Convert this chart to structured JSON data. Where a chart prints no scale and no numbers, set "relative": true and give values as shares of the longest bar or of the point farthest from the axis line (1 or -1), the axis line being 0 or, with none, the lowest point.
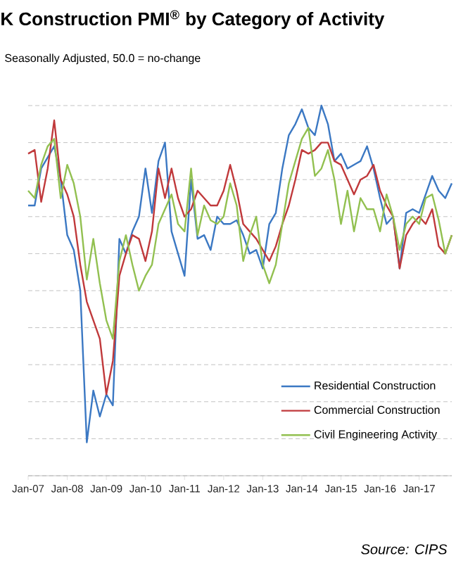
{
  "chart_data": {
    "type": "line",
    "relative": true,
    "title": "K Construction PMI$^{®}$ by Category of Activity",
    "subtitle": "Seasonally Adjusted, 50.0 = no-change",
    "annotations": [
      "Source: CIPS"
    ],
    "categories": [
      "Jan-07",
      null,
      null,
      null,
      null,
      null,
      "Jan-08",
      null,
      null,
      null,
      null,
      null,
      "Jan-09",
      null,
      null,
      null,
      null,
      null,
      "Jan-10",
      null,
      null,
      null,
      null,
      null,
      "Jan-11",
      null,
      null,
      null,
      null,
      null,
      "Jan-12",
      null,
      null,
      null,
      null,
      null,
      "Jan-13",
      null,
      null,
      null,
      null,
      null,
      "Jan-14",
      null,
      null,
      null,
      null,
      null,
      "Jan-15",
      null,
      null,
      null,
      null,
      null,
      "Jan-16",
      null,
      null,
      null,
      null,
      null,
      "Jan-17",
      null,
      null,
      null,
      null,
      null
    ],
    "series": [
      {
        "name": "Residential Construction",
        "color": "#3b78c3",
        "values": [
          0.73,
          0.73,
          0.83,
          0.86,
          0.89,
          0.8,
          0.65,
          0.61,
          0.5,
          0.09,
          0.23,
          0.16,
          0.22,
          0.19,
          0.64,
          0.6,
          0.66,
          0.7,
          0.83,
          0.71,
          0.85,
          0.9,
          0.66,
          0.6,
          0.54,
          0.8,
          0.64,
          0.65,
          0.61,
          0.7,
          0.68,
          0.68,
          0.69,
          0.65,
          0.6,
          0.61,
          0.56,
          0.68,
          0.71,
          0.83,
          0.92,
          0.95,
          0.99,
          0.94,
          0.92,
          1,
          0.95,
          0.85,
          0.87,
          0.83,
          0.84,
          0.85,
          0.89,
          0.83,
          0.75,
          0.68,
          0.7,
          0.56,
          0.71,
          0.72,
          0.71,
          0.76,
          0.81,
          0.77,
          0.75,
          0.79
        ]
      },
      {
        "name": "Commercial Construction",
        "color": "#c0393b",
        "values": [
          0.87,
          0.88,
          0.74,
          0.83,
          0.96,
          0.8,
          0.76,
          0.7,
          0.57,
          0.47,
          0.42,
          0.37,
          0.22,
          0.31,
          0.54,
          0.6,
          0.65,
          0.64,
          0.58,
          0.66,
          0.83,
          0.75,
          0.83,
          0.75,
          0.7,
          0.72,
          0.77,
          0.75,
          0.73,
          0.73,
          0.77,
          0.84,
          0.77,
          0.68,
          0.66,
          0.64,
          0.61,
          0.58,
          0.62,
          0.68,
          0.73,
          0.8,
          0.88,
          0.87,
          0.88,
          0.9,
          0.9,
          0.85,
          0.84,
          0.8,
          0.76,
          0.8,
          0.81,
          0.84,
          0.77,
          0.73,
          0.7,
          0.56,
          0.65,
          0.68,
          0.7,
          0.68,
          0.72,
          0.62,
          0.6,
          0.65
        ]
      },
      {
        "name": "Civil Engineering Activity",
        "color": "#92c050",
        "values": [
          0.77,
          0.75,
          0.84,
          0.89,
          0.91,
          0.75,
          0.84,
          0.79,
          0.7,
          0.53,
          0.64,
          0.52,
          0.42,
          0.37,
          0.58,
          0.65,
          0.57,
          0.5,
          0.54,
          0.57,
          0.68,
          0.72,
          0.76,
          0.68,
          0.66,
          0.83,
          0.65,
          0.73,
          0.69,
          0.68,
          0.7,
          0.79,
          0.73,
          0.58,
          0.65,
          0.7,
          0.57,
          0.52,
          0.57,
          0.68,
          0.79,
          0.85,
          0.91,
          0.94,
          0.81,
          0.83,
          0.88,
          0.8,
          0.68,
          0.77,
          0.66,
          0.75,
          0.72,
          0.72,
          0.66,
          0.76,
          0.7,
          0.61,
          0.68,
          0.7,
          0.68,
          0.75,
          0.76,
          0.69,
          0.6,
          0.65
        ]
      }
    ],
    "grid": "y",
    "legend": "bottom right",
    "marker": "none",
    "line_style": "solid"
  }
}
